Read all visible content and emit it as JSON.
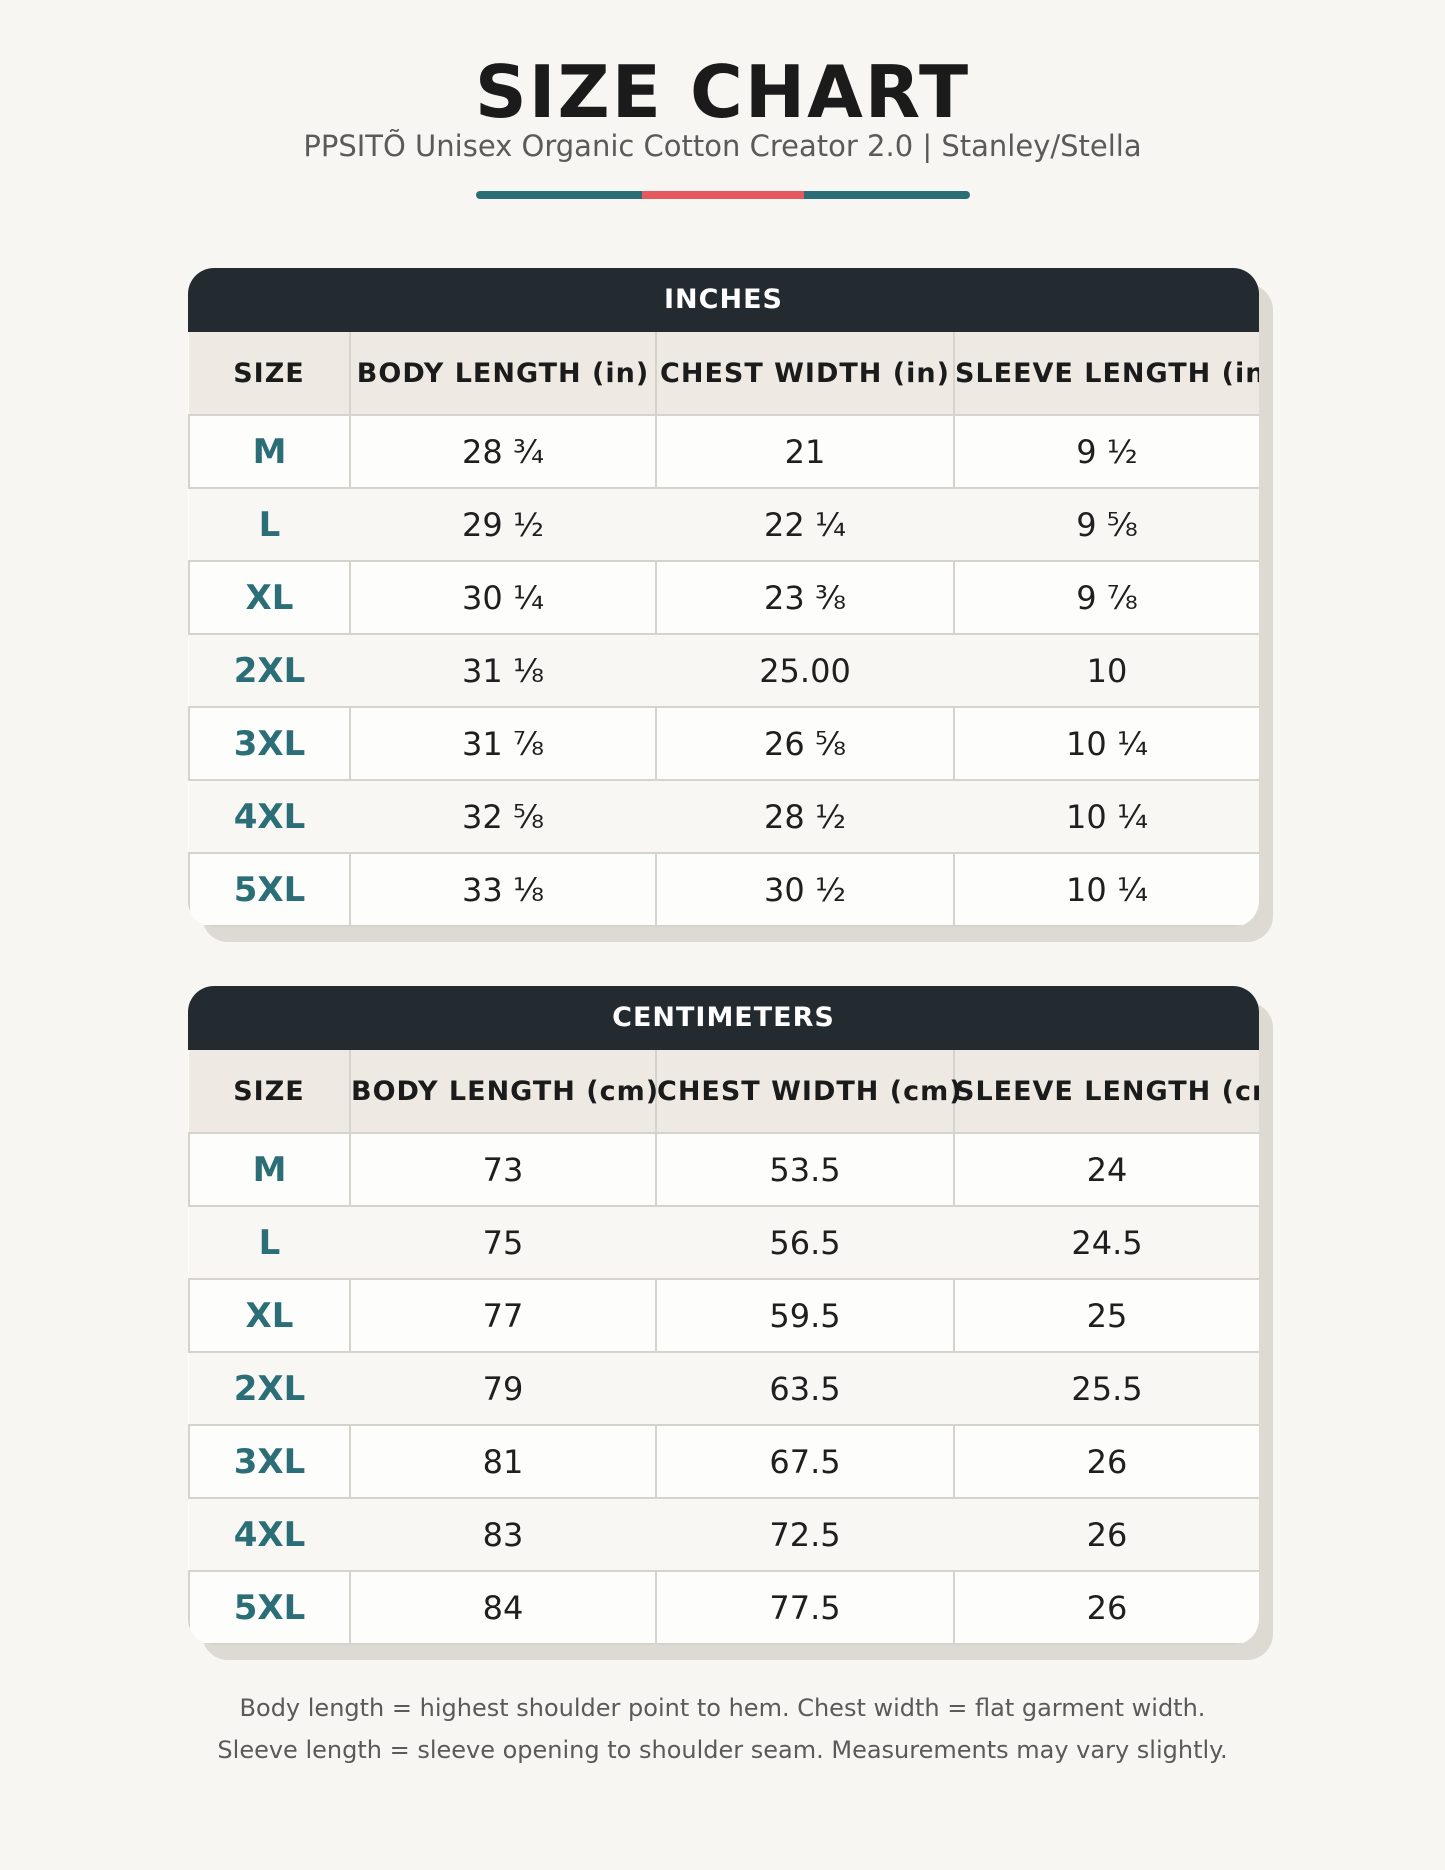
{
  "header": {
    "title": "SIZE CHART",
    "subtitle": "PPSITÕ Unisex Organic Cotton Creator 2.0 | Stanley/Stella"
  },
  "colors": {
    "accent_teal": "#2b6e78",
    "accent_red": "#e55a5e",
    "band_dark": "#242b30"
  },
  "inches": {
    "band": "INCHES",
    "headers": [
      "SIZE",
      "BODY LENGTH (in)",
      "CHEST WIDTH (in)",
      "SLEEVE LENGTH (in)"
    ],
    "rows": [
      [
        "M",
        "28 ¾",
        "21",
        "9 ½"
      ],
      [
        "L",
        "29 ½",
        "22 ¼",
        "9 ⅝"
      ],
      [
        "XL",
        "30 ¼",
        "23 ⅜",
        "9 ⅞"
      ],
      [
        "2XL",
        "31 ⅛",
        "25.00",
        "10"
      ],
      [
        "3XL",
        "31 ⅞",
        "26 ⅝",
        "10 ¼"
      ],
      [
        "4XL",
        "32 ⅝",
        "28 ½",
        "10 ¼"
      ],
      [
        "5XL",
        "33 ⅛",
        "30 ½",
        "10 ¼"
      ]
    ]
  },
  "centimeters": {
    "band": "CENTIMETERS",
    "headers": [
      "SIZE",
      "BODY LENGTH (cm)",
      "CHEST WIDTH (cm)",
      "SLEEVE LENGTH (cm)"
    ],
    "rows": [
      [
        "M",
        "73",
        "53.5",
        "24"
      ],
      [
        "L",
        "75",
        "56.5",
        "24.5"
      ],
      [
        "XL",
        "77",
        "59.5",
        "25"
      ],
      [
        "2XL",
        "79",
        "63.5",
        "25.5"
      ],
      [
        "3XL",
        "81",
        "67.5",
        "26"
      ],
      [
        "4XL",
        "83",
        "72.5",
        "26"
      ],
      [
        "5XL",
        "84",
        "77.5",
        "26"
      ]
    ]
  },
  "footnote": {
    "line1": "Body length = highest shoulder point to hem. Chest width = flat garment width.",
    "line2": "Sleeve length = sleeve opening to shoulder seam. Measurements may vary slightly."
  }
}
